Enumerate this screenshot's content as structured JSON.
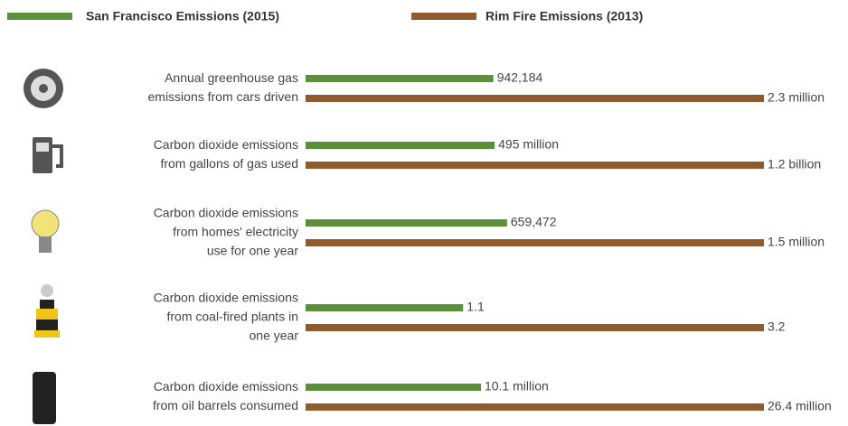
{
  "chart_data": {
    "type": "bar",
    "categories": [
      [
        "Annual greenhouse gas",
        "emissions from cars driven"
      ],
      [
        "Carbon dioxide emissions",
        "from gallons of gas used"
      ],
      [
        "Carbon dioxide emissions",
        "from homes' electricity",
        "use for one year"
      ],
      [
        "Carbon dioxide emissions",
        "from coal-fired plants in",
        "one year"
      ],
      [
        "Carbon dioxide emissions",
        "from oil barrels consumed"
      ]
    ],
    "series": [
      {
        "name": "San Francisco Emissions (2015)",
        "color": "#5b8f3a",
        "values": [
          942184,
          495000000,
          659472,
          1.1,
          10100000
        ],
        "value_labels": [
          "942,184",
          "495 million",
          "659,472",
          "1.1",
          "10.1 million"
        ]
      },
      {
        "name": "Rim Fire Emissions (2013)",
        "color": "#8e5a2e",
        "values": [
          2300000,
          1200000000,
          1500000,
          3.2,
          26400000
        ],
        "value_labels": [
          "2.3 million",
          "1.2 billion",
          "1.5 million",
          "3.2",
          "26.4 million"
        ]
      }
    ]
  }
}
